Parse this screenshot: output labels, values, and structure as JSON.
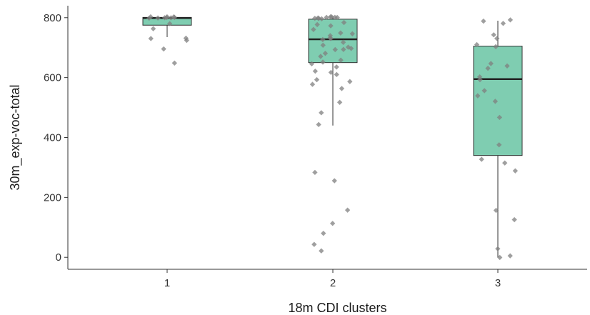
{
  "chart_data": {
    "type": "boxplot",
    "xlabel": "18m  CDI  clusters",
    "ylabel": "30m_exp-voc-total",
    "categories": [
      "1",
      "2",
      "3"
    ],
    "ylim": [
      -40,
      840
    ],
    "yticks": [
      0,
      200,
      400,
      600,
      800
    ],
    "grid": false,
    "box_color": "#7fcdb1",
    "point_color": "#7f7f7f",
    "boxes": [
      {
        "category": "1",
        "whisker_low": 735,
        "q1": 775,
        "median": 799,
        "q3": 801,
        "whisker_high": 801
      },
      {
        "category": "2",
        "whisker_low": 440,
        "q1": 650,
        "median": 728,
        "q3": 795,
        "whisker_high": 801
      },
      {
        "category": "3",
        "whisker_low": 0,
        "q1": 340,
        "median": 595,
        "q3": 705,
        "whisker_high": 790
      }
    ],
    "points": [
      {
        "category": "1",
        "values": [
          801,
          801,
          800,
          801,
          799,
          801,
          800,
          801,
          798,
          780,
          760,
          735,
          730,
          722,
          696,
          647
        ]
      },
      {
        "category": "2",
        "values": [
          801,
          801,
          800,
          801,
          800,
          801,
          799,
          801,
          800,
          785,
          775,
          770,
          760,
          750,
          745,
          740,
          735,
          730,
          725,
          715,
          710,
          705,
          700,
          695,
          690,
          680,
          670,
          660,
          655,
          645,
          635,
          625,
          620,
          610,
          595,
          585,
          575,
          565,
          520,
          485,
          440,
          280,
          258,
          155,
          110,
          80,
          42,
          20
        ]
      },
      {
        "category": "3",
        "values": [
          790,
          785,
          778,
          740,
          730,
          712,
          705,
          650,
          640,
          630,
          605,
          590,
          555,
          540,
          520,
          470,
          375,
          330,
          315,
          290,
          160,
          125,
          30,
          8,
          3
        ]
      }
    ]
  }
}
